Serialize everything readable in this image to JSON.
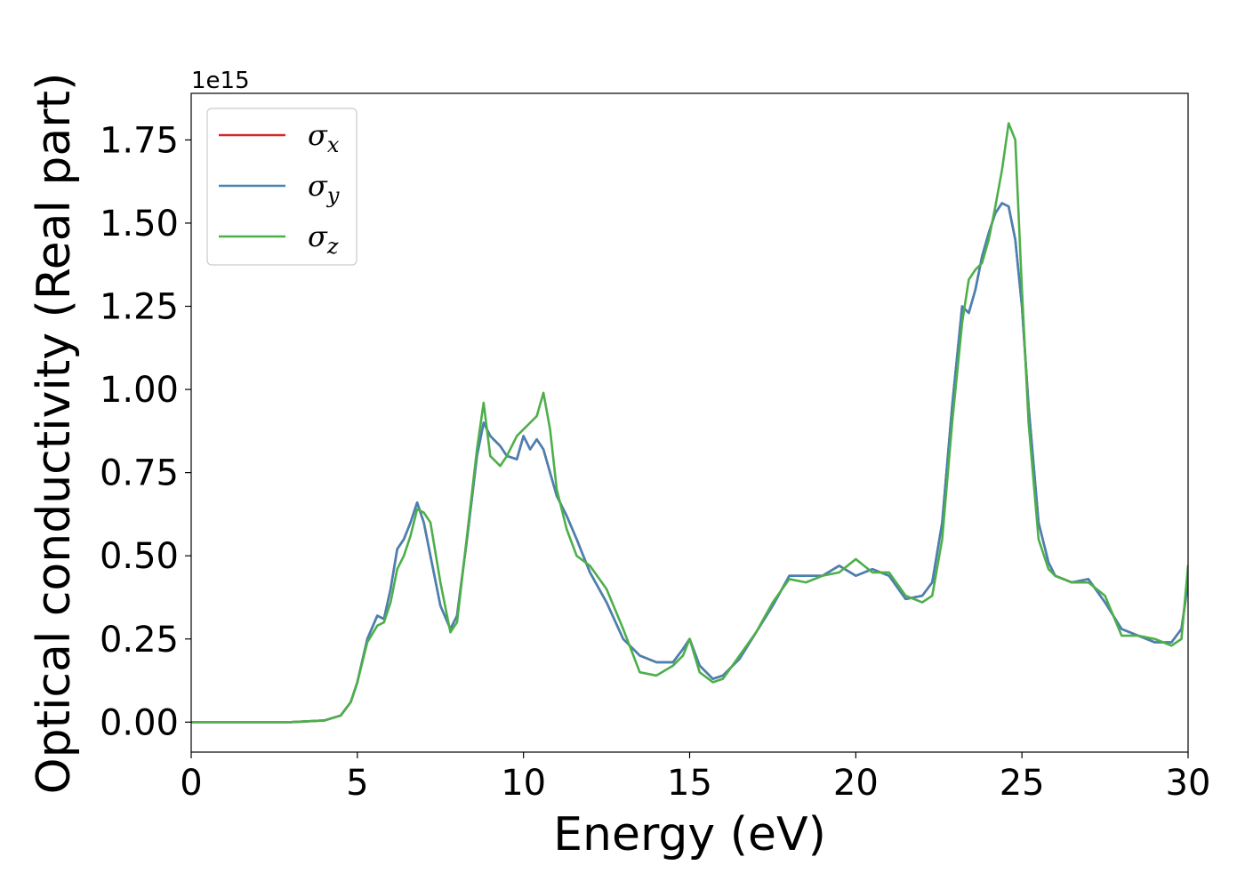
{
  "chart_data": {
    "type": "line",
    "title": "",
    "xlabel": "Energy (eV)",
    "ylabel": "Optical conductivity (Real part)",
    "y_offset_text": "1e15",
    "xlim": [
      0,
      30
    ],
    "ylim": [
      -0.09,
      1.89
    ],
    "x_ticks": [
      0,
      5,
      10,
      15,
      20,
      25,
      30
    ],
    "x_tick_labels": [
      "0",
      "5",
      "10",
      "15",
      "20",
      "25",
      "30"
    ],
    "y_ticks": [
      0.0,
      0.25,
      0.5,
      0.75,
      1.0,
      1.25,
      1.5,
      1.75
    ],
    "y_tick_labels": [
      "0.00",
      "0.25",
      "0.50",
      "0.75",
      "1.00",
      "1.25",
      "1.50",
      "1.75"
    ],
    "grid": false,
    "legend_position": "top-left",
    "series": [
      {
        "name": "σx",
        "name_base": "σ",
        "name_sub": "x",
        "color": "#d62728",
        "x": [
          0,
          1,
          2,
          3,
          4,
          4.5,
          4.8,
          5.0,
          5.3,
          5.6,
          5.8,
          6.0,
          6.2,
          6.4,
          6.6,
          6.8,
          7.0,
          7.2,
          7.5,
          7.8,
          8.0,
          8.3,
          8.6,
          8.8,
          9.0,
          9.3,
          9.5,
          9.8,
          10.0,
          10.2,
          10.4,
          10.6,
          10.8,
          11.0,
          11.3,
          11.6,
          12.0,
          12.5,
          13.0,
          13.5,
          14.0,
          14.5,
          14.8,
          15.0,
          15.3,
          15.7,
          16.0,
          16.5,
          17.0,
          17.5,
          18.0,
          18.5,
          19.0,
          19.5,
          20.0,
          20.5,
          21.0,
          21.5,
          22.0,
          22.3,
          22.6,
          22.9,
          23.2,
          23.4,
          23.6,
          23.8,
          24.0,
          24.2,
          24.4,
          24.6,
          24.8,
          25.0,
          25.2,
          25.5,
          25.8,
          26.0,
          26.5,
          27.0,
          27.5,
          28.0,
          28.5,
          29.0,
          29.5,
          29.8,
          30.0
        ],
        "y": [
          0.0,
          0.0,
          0.0,
          0.0,
          0.005,
          0.02,
          0.06,
          0.12,
          0.25,
          0.32,
          0.31,
          0.4,
          0.52,
          0.55,
          0.6,
          0.66,
          0.6,
          0.5,
          0.35,
          0.28,
          0.32,
          0.55,
          0.8,
          0.9,
          0.86,
          0.83,
          0.8,
          0.79,
          0.86,
          0.82,
          0.85,
          0.82,
          0.75,
          0.68,
          0.62,
          0.55,
          0.45,
          0.36,
          0.25,
          0.2,
          0.18,
          0.18,
          0.22,
          0.25,
          0.17,
          0.13,
          0.14,
          0.19,
          0.27,
          0.35,
          0.44,
          0.44,
          0.44,
          0.47,
          0.44,
          0.46,
          0.44,
          0.37,
          0.38,
          0.42,
          0.6,
          0.95,
          1.25,
          1.23,
          1.3,
          1.4,
          1.47,
          1.53,
          1.56,
          1.55,
          1.45,
          1.25,
          0.95,
          0.6,
          0.48,
          0.44,
          0.42,
          0.43,
          0.36,
          0.28,
          0.26,
          0.24,
          0.24,
          0.28,
          0.42
        ]
      },
      {
        "name": "σy",
        "name_base": "σ",
        "name_sub": "y",
        "color": "#4682b4",
        "x": [
          0,
          1,
          2,
          3,
          4,
          4.5,
          4.8,
          5.0,
          5.3,
          5.6,
          5.8,
          6.0,
          6.2,
          6.4,
          6.6,
          6.8,
          7.0,
          7.2,
          7.5,
          7.8,
          8.0,
          8.3,
          8.6,
          8.8,
          9.0,
          9.3,
          9.5,
          9.8,
          10.0,
          10.2,
          10.4,
          10.6,
          10.8,
          11.0,
          11.3,
          11.6,
          12.0,
          12.5,
          13.0,
          13.5,
          14.0,
          14.5,
          14.8,
          15.0,
          15.3,
          15.7,
          16.0,
          16.5,
          17.0,
          17.5,
          18.0,
          18.5,
          19.0,
          19.5,
          20.0,
          20.5,
          21.0,
          21.5,
          22.0,
          22.3,
          22.6,
          22.9,
          23.2,
          23.4,
          23.6,
          23.8,
          24.0,
          24.2,
          24.4,
          24.6,
          24.8,
          25.0,
          25.2,
          25.5,
          25.8,
          26.0,
          26.5,
          27.0,
          27.5,
          28.0,
          28.5,
          29.0,
          29.5,
          29.8,
          30.0
        ],
        "y": [
          0.0,
          0.0,
          0.0,
          0.0,
          0.005,
          0.02,
          0.06,
          0.12,
          0.25,
          0.32,
          0.31,
          0.4,
          0.52,
          0.55,
          0.6,
          0.66,
          0.6,
          0.5,
          0.35,
          0.28,
          0.32,
          0.55,
          0.8,
          0.9,
          0.86,
          0.83,
          0.8,
          0.79,
          0.86,
          0.82,
          0.85,
          0.82,
          0.75,
          0.68,
          0.62,
          0.55,
          0.45,
          0.36,
          0.25,
          0.2,
          0.18,
          0.18,
          0.22,
          0.25,
          0.17,
          0.13,
          0.14,
          0.19,
          0.27,
          0.35,
          0.44,
          0.44,
          0.44,
          0.47,
          0.44,
          0.46,
          0.44,
          0.37,
          0.38,
          0.42,
          0.6,
          0.95,
          1.25,
          1.23,
          1.3,
          1.4,
          1.47,
          1.53,
          1.56,
          1.55,
          1.45,
          1.25,
          0.95,
          0.6,
          0.48,
          0.44,
          0.42,
          0.43,
          0.36,
          0.28,
          0.26,
          0.24,
          0.24,
          0.28,
          0.42
        ]
      },
      {
        "name": "σz",
        "name_base": "σ",
        "name_sub": "z",
        "color": "#4daf4a",
        "x": [
          0,
          1,
          2,
          3,
          4,
          4.5,
          4.8,
          5.0,
          5.3,
          5.6,
          5.8,
          6.0,
          6.2,
          6.4,
          6.6,
          6.8,
          7.0,
          7.2,
          7.5,
          7.8,
          8.0,
          8.3,
          8.6,
          8.8,
          9.0,
          9.3,
          9.5,
          9.8,
          10.0,
          10.2,
          10.4,
          10.6,
          10.8,
          11.0,
          11.3,
          11.6,
          12.0,
          12.5,
          13.0,
          13.5,
          14.0,
          14.5,
          14.8,
          15.0,
          15.3,
          15.7,
          16.0,
          16.5,
          17.0,
          17.5,
          18.0,
          18.5,
          19.0,
          19.5,
          20.0,
          20.5,
          21.0,
          21.5,
          22.0,
          22.3,
          22.6,
          22.9,
          23.2,
          23.4,
          23.6,
          23.8,
          24.0,
          24.2,
          24.4,
          24.6,
          24.8,
          25.0,
          25.2,
          25.5,
          25.8,
          26.0,
          26.5,
          27.0,
          27.5,
          28.0,
          28.5,
          29.0,
          29.5,
          29.8,
          30.0
        ],
        "y": [
          0.0,
          0.0,
          0.0,
          0.0,
          0.005,
          0.02,
          0.06,
          0.12,
          0.24,
          0.29,
          0.3,
          0.36,
          0.46,
          0.5,
          0.56,
          0.64,
          0.63,
          0.6,
          0.42,
          0.27,
          0.3,
          0.56,
          0.82,
          0.96,
          0.8,
          0.77,
          0.8,
          0.86,
          0.88,
          0.9,
          0.92,
          0.99,
          0.88,
          0.7,
          0.58,
          0.5,
          0.47,
          0.4,
          0.28,
          0.15,
          0.14,
          0.17,
          0.2,
          0.25,
          0.15,
          0.12,
          0.13,
          0.2,
          0.27,
          0.36,
          0.43,
          0.42,
          0.44,
          0.45,
          0.49,
          0.45,
          0.45,
          0.38,
          0.36,
          0.38,
          0.55,
          0.9,
          1.2,
          1.33,
          1.36,
          1.38,
          1.45,
          1.55,
          1.66,
          1.8,
          1.75,
          1.3,
          0.9,
          0.55,
          0.46,
          0.44,
          0.42,
          0.42,
          0.38,
          0.26,
          0.26,
          0.25,
          0.23,
          0.25,
          0.47
        ]
      }
    ]
  }
}
